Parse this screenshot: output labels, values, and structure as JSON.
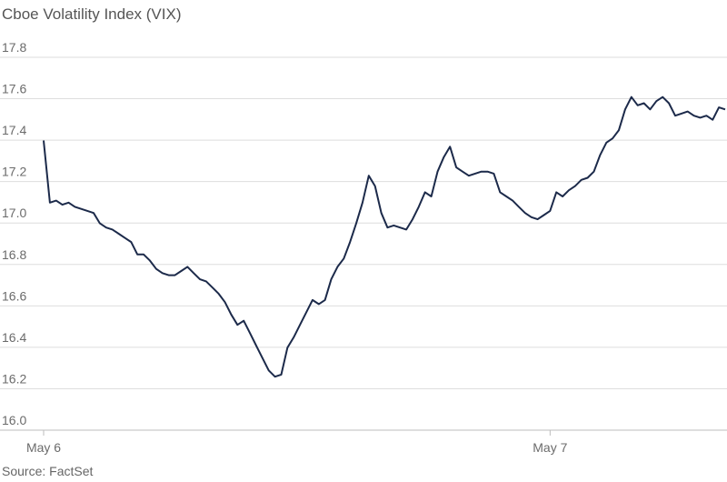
{
  "chart_data": {
    "type": "line",
    "title": "Cboe Volatility Index (VIX)",
    "source": "Source: FactSet",
    "ylim": [
      16.0,
      17.8
    ],
    "y_ticks": [
      "16.0",
      "16.2",
      "16.4",
      "16.6",
      "16.8",
      "17.0",
      "17.2",
      "17.4",
      "17.6",
      "17.8"
    ],
    "x_ticks": [
      {
        "label": "May 6",
        "index": 0
      },
      {
        "label": "May 7",
        "index": 81
      }
    ],
    "grid": true,
    "series": [
      {
        "color": "#1c2a4a",
        "values": [
          17.35,
          17.05,
          17.06,
          17.04,
          17.05,
          17.03,
          17.02,
          17.01,
          17.0,
          16.95,
          16.93,
          16.92,
          16.9,
          16.88,
          16.86,
          16.8,
          16.8,
          16.77,
          16.73,
          16.71,
          16.7,
          16.7,
          16.72,
          16.74,
          16.71,
          16.68,
          16.67,
          16.64,
          16.61,
          16.57,
          16.51,
          16.46,
          16.48,
          16.42,
          16.36,
          16.3,
          16.24,
          16.21,
          16.22,
          16.35,
          16.4,
          16.46,
          16.52,
          16.58,
          16.56,
          16.58,
          16.68,
          16.74,
          16.78,
          16.86,
          16.95,
          17.05,
          17.18,
          17.13,
          17.0,
          16.93,
          16.94,
          16.93,
          16.92,
          16.97,
          17.03,
          17.1,
          17.08,
          17.2,
          17.27,
          17.32,
          17.22,
          17.2,
          17.18,
          17.19,
          17.2,
          17.2,
          17.19,
          17.1,
          17.08,
          17.06,
          17.03,
          17.0,
          16.98,
          16.97,
          16.99,
          17.01,
          17.1,
          17.08,
          17.11,
          17.13,
          17.16,
          17.17,
          17.2,
          17.28,
          17.34,
          17.36,
          17.4,
          17.5,
          17.56,
          17.52,
          17.53,
          17.5,
          17.54,
          17.56,
          17.53,
          17.47,
          17.48,
          17.49,
          17.47,
          17.46,
          17.47,
          17.45,
          17.51,
          17.5
        ]
      }
    ]
  }
}
